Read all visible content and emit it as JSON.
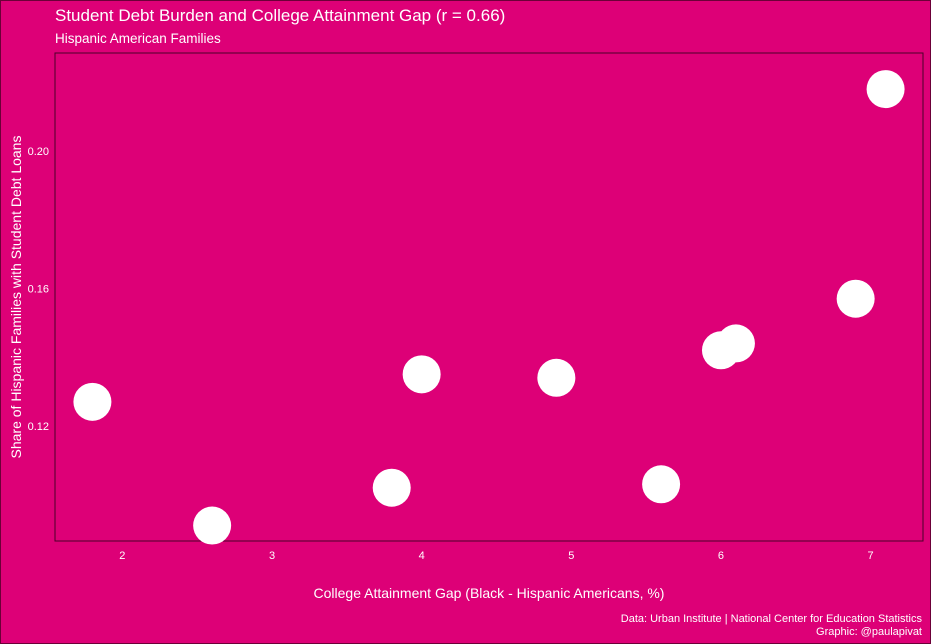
{
  "chart_data": {
    "type": "scatter",
    "title": "Student Debt Burden and College Attainment Gap (r = 0.66)",
    "subtitle": "Hispanic American Families",
    "xlabel": "College Attainment Gap (Black - Hispanic Americans, %)",
    "ylabel": "Share of Hispanic Families with Student Debt Loans",
    "xlim": [
      1.55,
      7.35
    ],
    "ylim": [
      0.0865,
      0.2285
    ],
    "x_ticks": [
      2,
      3,
      4,
      5,
      6,
      7
    ],
    "y_ticks": [
      0.12,
      0.16,
      0.2
    ],
    "y_tick_labels": [
      "0.12",
      "0.16",
      "0.20"
    ],
    "grid": false,
    "points": [
      {
        "x": 1.8,
        "y": 0.127
      },
      {
        "x": 2.6,
        "y": 0.091
      },
      {
        "x": 3.8,
        "y": 0.102
      },
      {
        "x": 4.0,
        "y": 0.135
      },
      {
        "x": 4.9,
        "y": 0.134
      },
      {
        "x": 5.6,
        "y": 0.103
      },
      {
        "x": 6.0,
        "y": 0.142
      },
      {
        "x": 6.1,
        "y": 0.144
      },
      {
        "x": 6.9,
        "y": 0.157
      },
      {
        "x": 7.1,
        "y": 0.218
      }
    ],
    "caption": [
      "Data: Urban Institute | National Center for Education Statistics",
      "Graphic: @paulapivat"
    ]
  },
  "colors": {
    "background": "#dd0077",
    "points": "#ffffff",
    "text": "#ffffff",
    "panel_border": "#4a0028"
  }
}
